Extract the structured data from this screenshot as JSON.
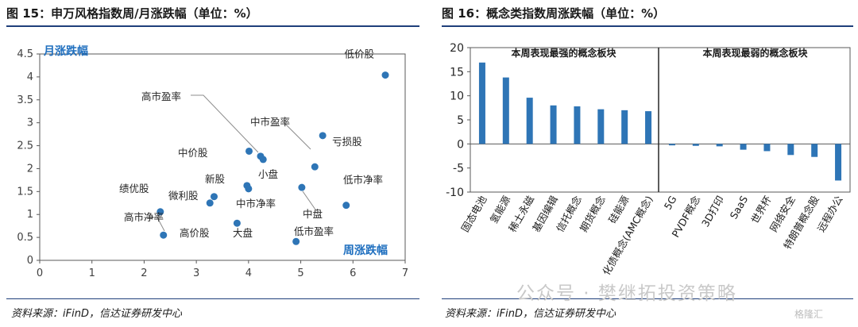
{
  "left": {
    "title": "图 15：申万风格指数周/月涨跌幅（单位：%）",
    "source": "资料来源：iFinD，信达证券研发中心"
  },
  "right": {
    "title": "图 16：概念类指数周涨跌幅（单位：%）",
    "source": "资料来源：iFinD，信达证券研发中心"
  },
  "watermark": "公众号 · 樊继拓投资策略",
  "watermark_badge": "格隆汇",
  "colors": {
    "point": "#2e75b6",
    "bar": "#2e75b6",
    "axis_label": "#1f6fbf",
    "rule": "#1f3f7a"
  },
  "chart_data": [
    {
      "type": "scatter",
      "xlabel": "周涨跌幅",
      "ylabel": "月涨跌幅",
      "xlim": [
        0,
        7
      ],
      "ylim": [
        0,
        4.5
      ],
      "xticks": [
        "0",
        "1",
        "2",
        "3",
        "4",
        "5",
        "6",
        "7"
      ],
      "yticks": [
        "0",
        "0.5",
        "1",
        "1.5",
        "2",
        "2.5",
        "3",
        "3.5",
        "4",
        "4.5"
      ],
      "points": [
        {
          "label": "低价股",
          "x": 6.62,
          "y": 4.04
        },
        {
          "label": "亏损股",
          "x": 5.42,
          "y": 2.72
        },
        {
          "label": "中市盈率",
          "x": 5.27,
          "y": 2.04
        },
        {
          "label": "低市净率",
          "x": 5.87,
          "y": 1.2
        },
        {
          "label": "中盘",
          "x": 5.02,
          "y": 1.59
        },
        {
          "label": "低市盈率",
          "x": 4.91,
          "y": 0.41
        },
        {
          "label": "高市盈率",
          "x": 4.23,
          "y": 2.27
        },
        {
          "label": "小盘",
          "x": 4.28,
          "y": 2.2
        },
        {
          "label": "中价股",
          "x": 4.01,
          "y": 2.38
        },
        {
          "label": "新股",
          "x": 3.97,
          "y": 1.63
        },
        {
          "label": "中市净率",
          "x": 4.0,
          "y": 1.56
        },
        {
          "label": "大盘",
          "x": 3.78,
          "y": 0.81
        },
        {
          "label": "微利股",
          "x": 3.34,
          "y": 1.39
        },
        {
          "label": "高价股",
          "x": 3.26,
          "y": 1.25
        },
        {
          "label": "绩优股",
          "x": 2.31,
          "y": 1.06
        },
        {
          "label": "高市净率",
          "x": 2.37,
          "y": 0.55
        }
      ]
    },
    {
      "type": "bar",
      "ylim": [
        -10,
        20
      ],
      "yticks": [
        "-10",
        "-5",
        "0",
        "5",
        "10",
        "15",
        "20"
      ],
      "group_labels": [
        "本周表现最强的概念板块",
        "本周表现最弱的概念板块"
      ],
      "categories": [
        "固态电池",
        "氢能源",
        "稀土永磁",
        "基因编辑",
        "信托概念",
        "期货概念",
        "硅能源",
        "化债概念(AMC概念)",
        "5G",
        "PVDF概念",
        "3D打印",
        "SaaS",
        "世界杯",
        "网络安全",
        "特朗普概念股",
        "远程办公"
      ],
      "values": [
        16.9,
        13.8,
        9.6,
        8.0,
        7.8,
        7.2,
        7.0,
        6.8,
        -0.3,
        -0.4,
        -0.5,
        -1.2,
        -1.5,
        -2.3,
        -2.7,
        -7.6
      ]
    }
  ]
}
